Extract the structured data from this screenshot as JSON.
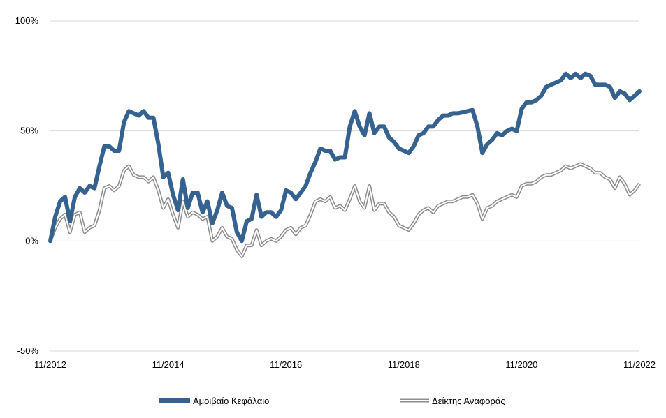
{
  "chart_data": {
    "type": "line",
    "x_start": "11/2012",
    "x_end": "11/2022",
    "x_ticks": [
      "11/2012",
      "11/2014",
      "11/2016",
      "11/2018",
      "11/2020",
      "11/2022"
    ],
    "y_ticks": [
      "100%",
      "50%",
      "0%",
      "-50%"
    ],
    "ylim": [
      -50,
      100
    ],
    "grid": "horizontal",
    "legend_position": "bottom",
    "series": [
      {
        "name": "Αμοιβαίο Κεφάλαιο",
        "color": "#35628F",
        "style": "solid-thick",
        "values": [
          0,
          11,
          18,
          20,
          9,
          20,
          24,
          22,
          25,
          24,
          34,
          43,
          43,
          41,
          41,
          54,
          59,
          58,
          57,
          59,
          56,
          56,
          44,
          29,
          31,
          21,
          14,
          28,
          15,
          22,
          22,
          13,
          18,
          8,
          14,
          22,
          16,
          15,
          4,
          0,
          9,
          10,
          21,
          11,
          13,
          13,
          11,
          14,
          23,
          22,
          19,
          22,
          25,
          31,
          36,
          42,
          41,
          41,
          37,
          38,
          38,
          52,
          59,
          52,
          48,
          58,
          49,
          52,
          52,
          47,
          45,
          42,
          41,
          40,
          43,
          48,
          49,
          52,
          52,
          55,
          57,
          57,
          58,
          58,
          58.5,
          59,
          59.5,
          52,
          40,
          44,
          46,
          49,
          48,
          50,
          51,
          50,
          60,
          63,
          63,
          64,
          66,
          70,
          71,
          72,
          73,
          76,
          74,
          76,
          74,
          76,
          75,
          71,
          71,
          71,
          70,
          65,
          68,
          67,
          64,
          66,
          68
        ]
      },
      {
        "name": "Δείκτης Αναφοράς",
        "color": "#8C8C8C",
        "style": "double",
        "values": [
          0,
          6,
          10,
          12,
          4,
          12,
          13,
          4,
          6,
          7,
          14,
          24,
          25,
          23,
          25,
          32,
          34,
          30,
          29,
          29,
          27,
          29,
          23,
          15,
          19,
          12,
          6,
          18,
          11,
          13,
          12,
          10,
          11,
          0,
          2,
          6,
          2,
          1,
          -4,
          -7,
          -2,
          -2,
          5,
          -2,
          0,
          1,
          0,
          2,
          5,
          6,
          3,
          6,
          7,
          12,
          18,
          19,
          18,
          20,
          15,
          16,
          14,
          19,
          25,
          18,
          15,
          25,
          14,
          17,
          17,
          13,
          11,
          7,
          6,
          5,
          8,
          12,
          14,
          15,
          13,
          16,
          17,
          18,
          18,
          19,
          20,
          20,
          21,
          17,
          10,
          15,
          16,
          18,
          19,
          20,
          21,
          20,
          25,
          26,
          26,
          27,
          29,
          30,
          30,
          31,
          32,
          34,
          33,
          34,
          35,
          34,
          33,
          31,
          31,
          29,
          28,
          24,
          29,
          26,
          21,
          23,
          26
        ]
      }
    ]
  }
}
